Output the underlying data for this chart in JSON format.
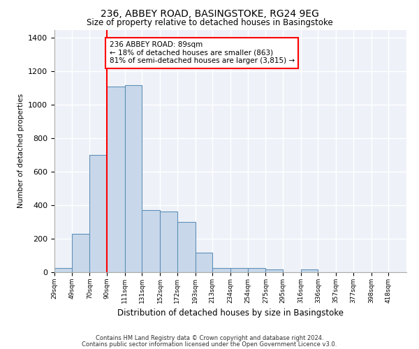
{
  "title1": "236, ABBEY ROAD, BASINGSTOKE, RG24 9EG",
  "title2": "Size of property relative to detached houses in Basingstoke",
  "xlabel": "Distribution of detached houses by size in Basingstoke",
  "ylabel": "Number of detached properties",
  "bin_edges": [
    29,
    49,
    70,
    90,
    111,
    131,
    152,
    172,
    193,
    213,
    234,
    254,
    275,
    295,
    316,
    336,
    357,
    377,
    398,
    418,
    439
  ],
  "bar_heights": [
    25,
    230,
    700,
    1110,
    1120,
    370,
    365,
    300,
    115,
    25,
    25,
    25,
    18,
    0,
    18,
    0,
    0,
    0,
    0,
    0
  ],
  "bar_color": "#c8d8ea",
  "bar_edge_color": "#6090b8",
  "property_line_x": 90,
  "property_line_color": "red",
  "annotation_text": "236 ABBEY ROAD: 89sqm\n← 18% of detached houses are smaller (863)\n81% of semi-detached houses are larger (3,815) →",
  "annotation_box_color": "white",
  "annotation_box_edge": "red",
  "ylim": [
    0,
    1450
  ],
  "xlim_min": 29,
  "xlim_max": 439,
  "background_color": "#eef2f8",
  "grid_color": "white",
  "footer1": "Contains HM Land Registry data © Crown copyright and database right 2024.",
  "footer2": "Contains public sector information licensed under the Open Government Licence v3.0."
}
